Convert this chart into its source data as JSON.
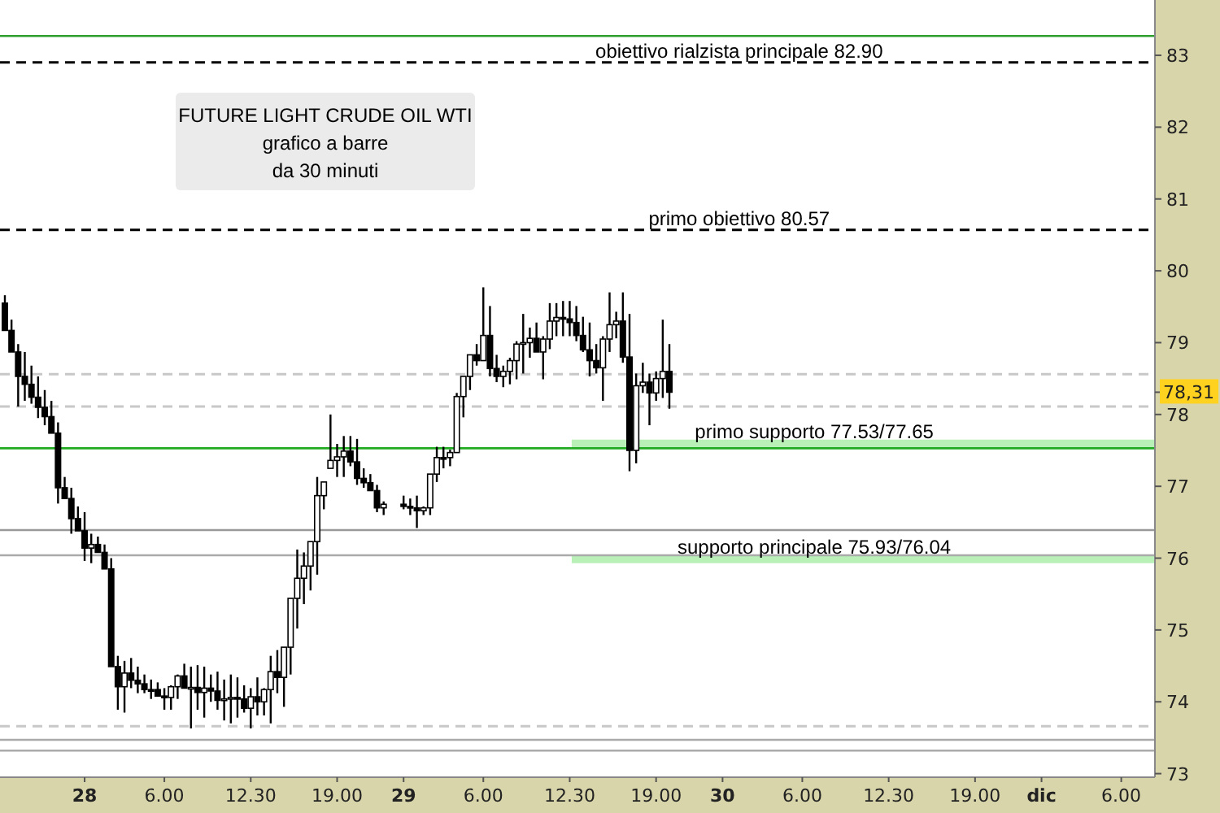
{
  "chart_data": {
    "type": "candlestick",
    "title": "FUTURE LIGHT CRUDE OIL WTI",
    "subtitle": "grafico a barre\nda 30 minuti",
    "color": "#000000",
    "x": [
      "--11-27T18:00",
      "--11-27T18:30",
      "--11-27T19:00",
      "--11-27T19:30",
      "--11-27T20:00",
      "--11-27T20:30",
      "--11-27T21:00",
      "--11-27T21:30",
      "--11-27T22:00",
      "--11-27T22:30",
      "--11-27T23:00",
      "--11-27T23:30",
      "--11-28T00:00",
      "--11-28T00:30",
      "--11-28T01:00",
      "--11-28T01:30",
      "--11-28T02:00",
      "--11-28T02:30",
      "--11-28T03:00",
      "--11-28T03:30",
      "--11-28T04:00",
      "--11-28T04:30",
      "--11-28T05:00",
      "--11-28T05:30",
      "--11-28T06:00",
      "--11-28T06:30",
      "--11-28T07:00",
      "--11-28T07:30",
      "--11-28T08:00",
      "--11-28T08:30",
      "--11-28T09:00",
      "--11-28T09:30",
      "--11-28T10:00",
      "--11-28T10:30",
      "--11-28T11:00",
      "--11-28T11:30",
      "--11-28T12:00",
      "--11-28T12:30",
      "--11-28T13:00",
      "--11-28T13:30",
      "--11-28T14:00",
      "--11-28T14:30",
      "--11-28T15:00",
      "--11-28T15:30",
      "--11-28T16:00",
      "--11-28T16:30",
      "--11-28T17:00",
      "--11-28T17:30",
      "--11-28T18:00",
      "--11-28T18:30",
      "--11-28T19:00",
      "--11-28T19:30",
      "--11-28T20:00",
      "--11-28T20:30",
      "--11-28T21:00",
      "--11-28T21:30",
      "--11-28T22:00",
      "--11-28T22:30",
      "--11-29T00:00",
      "--11-29T00:30",
      "--11-29T01:00",
      "--11-29T01:30",
      "--11-29T02:00",
      "--11-29T02:30",
      "--11-29T03:00",
      "--11-29T03:30",
      "--11-29T04:00",
      "--11-29T04:30",
      "--11-29T05:00",
      "--11-29T05:30",
      "--11-29T06:00",
      "--11-29T06:30",
      "--11-29T07:00",
      "--11-29T07:30",
      "--11-29T08:00",
      "--11-29T08:30",
      "--11-29T09:00",
      "--11-29T09:30",
      "--11-29T10:00",
      "--11-29T10:30",
      "--11-29T11:00",
      "--11-29T11:30",
      "--11-29T12:00",
      "--11-29T12:30",
      "--11-29T13:00",
      "--11-29T13:30",
      "--11-29T14:00",
      "--11-29T14:30",
      "--11-29T15:00",
      "--11-29T15:30",
      "--11-29T16:00",
      "--11-29T16:30",
      "--11-29T17:00",
      "--11-29T17:30",
      "--11-29T18:00",
      "--11-29T18:30",
      "--11-29T19:00",
      "--11-29T19:30",
      "--11-29T20:00"
    ],
    "ohlc": [
      [
        79.55,
        79.66,
        79.17,
        79.17
      ],
      [
        79.17,
        79.32,
        78.87,
        78.87
      ],
      [
        78.87,
        78.98,
        78.11,
        78.53
      ],
      [
        78.53,
        78.87,
        78.19,
        78.42
      ],
      [
        78.42,
        78.68,
        78.15,
        78.24
      ],
      [
        78.24,
        78.53,
        77.95,
        78.1
      ],
      [
        78.1,
        78.34,
        77.85,
        77.97
      ],
      [
        77.97,
        78.19,
        77.74,
        77.74
      ],
      [
        77.74,
        77.89,
        76.76,
        76.98
      ],
      [
        76.98,
        77.13,
        76.83,
        76.83
      ],
      [
        76.83,
        76.98,
        76.34,
        76.55
      ],
      [
        76.55,
        76.72,
        76.38,
        76.38
      ],
      [
        76.38,
        76.64,
        75.96,
        76.14
      ],
      [
        76.14,
        76.34,
        75.93,
        76.19
      ],
      [
        76.19,
        76.3,
        76.08,
        76.08
      ],
      [
        76.08,
        76.19,
        75.85,
        75.85
      ],
      [
        75.85,
        76.0,
        74.49,
        74.49
      ],
      [
        74.49,
        74.64,
        73.89,
        74.21
      ],
      [
        74.21,
        74.57,
        73.85,
        74.4
      ],
      [
        74.4,
        74.61,
        74.19,
        74.3
      ],
      [
        74.3,
        74.49,
        74.12,
        74.25
      ],
      [
        74.25,
        74.38,
        74.12,
        74.17
      ],
      [
        74.17,
        74.31,
        74.04,
        74.17
      ],
      [
        74.17,
        74.27,
        74.08,
        74.08
      ],
      [
        74.08,
        74.19,
        73.89,
        74.06
      ],
      [
        74.06,
        74.23,
        73.89,
        74.21
      ],
      [
        74.21,
        74.38,
        74.04,
        74.36
      ],
      [
        74.36,
        74.53,
        74.19,
        74.19
      ],
      [
        74.19,
        74.49,
        73.63,
        74.2
      ],
      [
        74.2,
        74.51,
        73.89,
        74.13
      ],
      [
        74.13,
        74.49,
        73.78,
        74.19
      ],
      [
        74.19,
        74.38,
        74.0,
        74.15
      ],
      [
        74.15,
        74.42,
        73.89,
        74.02
      ],
      [
        74.02,
        74.31,
        73.74,
        74.04
      ],
      [
        74.04,
        74.38,
        73.7,
        74.06
      ],
      [
        74.06,
        74.34,
        73.78,
        74.04
      ],
      [
        74.04,
        74.23,
        73.85,
        73.91
      ],
      [
        73.91,
        74.19,
        73.63,
        74.07
      ],
      [
        74.07,
        74.34,
        73.81,
        74.0
      ],
      [
        74.0,
        74.19,
        73.81,
        74.17
      ],
      [
        74.17,
        74.64,
        73.7,
        74.42
      ],
      [
        74.42,
        74.72,
        74.12,
        74.34
      ],
      [
        74.34,
        74.76,
        73.93,
        74.76
      ],
      [
        74.76,
        75.44,
        74.38,
        75.44
      ],
      [
        75.44,
        76.12,
        75.02,
        75.72
      ],
      [
        75.72,
        76.08,
        75.36,
        75.89
      ],
      [
        75.89,
        76.23,
        75.55,
        76.23
      ],
      [
        76.23,
        77.13,
        75.77,
        76.87
      ],
      [
        76.87,
        77.06,
        76.68,
        77.06
      ],
      [
        77.25,
        78.0,
        77.25,
        77.36
      ],
      [
        77.36,
        77.59,
        77.13,
        77.41
      ],
      [
        77.41,
        77.7,
        77.13,
        77.49
      ],
      [
        77.49,
        77.7,
        77.28,
        77.34
      ],
      [
        77.34,
        77.66,
        77.02,
        77.11
      ],
      [
        77.11,
        77.25,
        76.98,
        77.05
      ],
      [
        77.05,
        77.17,
        76.94,
        76.94
      ],
      [
        76.94,
        77.02,
        76.64,
        76.7
      ],
      [
        76.7,
        76.79,
        76.6,
        76.75
      ],
      [
        76.75,
        76.87,
        76.68,
        76.72
      ],
      [
        76.72,
        76.83,
        76.6,
        76.7
      ],
      [
        76.7,
        76.87,
        76.42,
        76.66
      ],
      [
        76.66,
        76.72,
        76.6,
        76.7
      ],
      [
        76.7,
        77.17,
        76.6,
        77.17
      ],
      [
        77.17,
        77.55,
        77.06,
        77.4
      ],
      [
        77.4,
        77.55,
        77.25,
        77.4
      ],
      [
        77.4,
        77.51,
        77.28,
        77.47
      ],
      [
        77.47,
        78.3,
        77.47,
        78.25
      ],
      [
        78.25,
        78.53,
        77.96,
        78.53
      ],
      [
        78.53,
        78.83,
        78.34,
        78.83
      ],
      [
        78.83,
        78.98,
        78.68,
        78.75
      ],
      [
        78.75,
        79.77,
        78.75,
        79.1
      ],
      [
        79.1,
        79.51,
        78.53,
        78.64
      ],
      [
        78.64,
        78.83,
        78.45,
        78.53
      ],
      [
        78.53,
        78.68,
        78.38,
        78.6
      ],
      [
        78.6,
        78.79,
        78.42,
        78.75
      ],
      [
        78.75,
        79.02,
        78.49,
        78.98
      ],
      [
        78.98,
        79.4,
        78.57,
        79.0
      ],
      [
        79.0,
        79.21,
        78.79,
        79.06
      ],
      [
        79.06,
        79.28,
        78.87,
        78.87
      ],
      [
        78.87,
        79.09,
        78.49,
        79.05
      ],
      [
        79.05,
        79.55,
        78.91,
        79.3
      ],
      [
        79.3,
        79.55,
        79.09,
        79.35
      ],
      [
        79.35,
        79.58,
        79.09,
        79.33
      ],
      [
        79.33,
        79.58,
        79.09,
        79.28
      ],
      [
        79.28,
        79.51,
        79.02,
        79.1
      ],
      [
        79.1,
        79.36,
        78.87,
        78.9
      ],
      [
        78.9,
        79.28,
        78.53,
        78.75
      ],
      [
        78.75,
        78.98,
        78.57,
        78.65
      ],
      [
        78.65,
        79.09,
        78.19,
        79.05
      ],
      [
        79.05,
        79.7,
        78.87,
        79.25
      ],
      [
        79.25,
        79.43,
        79.06,
        79.3
      ],
      [
        79.3,
        79.7,
        78.72,
        78.8
      ],
      [
        78.8,
        79.4,
        77.21,
        77.5
      ],
      [
        77.5,
        78.57,
        77.32,
        78.4
      ],
      [
        78.4,
        78.72,
        78.3,
        78.45
      ],
      [
        78.45,
        78.57,
        77.85,
        78.3
      ],
      [
        78.3,
        78.6,
        78.19,
        78.5
      ],
      [
        78.5,
        79.32,
        78.23,
        78.6
      ],
      [
        78.6,
        78.98,
        78.08,
        78.31
      ]
    ],
    "xlim": [
      "--11-27T17:38",
      "--12-01T08:32"
    ],
    "xticks": [
      {
        "value": "--11-28",
        "label": "28"
      },
      {
        "value": "--11-28T06:00",
        "label": "6.00"
      },
      {
        "value": "--11-28T12:30",
        "label": "12.30"
      },
      {
        "value": "--11-28T19:00",
        "label": "19.00"
      },
      {
        "value": "--11-29",
        "label": "29"
      },
      {
        "value": "--11-29T06:00",
        "label": "6.00"
      },
      {
        "value": "--11-29T12:30",
        "label": "12.30"
      },
      {
        "value": "--11-29T19:00",
        "label": "19.00"
      },
      {
        "value": "--11-30",
        "label": "30"
      },
      {
        "value": "--11-30T06:00",
        "label": "6.00"
      },
      {
        "value": "--11-30T12:30",
        "label": "12.30"
      },
      {
        "value": "--11-30T19:00",
        "label": "19.00"
      },
      {
        "value": "--12-01",
        "label": "dic"
      },
      {
        "value": "--12-01T06:00",
        "label": "6.00"
      }
    ],
    "ylim": [
      72.95,
      83.77
    ],
    "yticks": [
      73,
      74,
      75,
      76,
      77,
      78,
      {
        "value": 78.31,
        "label": "78,31"
      },
      79,
      80,
      81,
      82,
      83
    ],
    "ref_lines": [
      {
        "axis": "y",
        "value": 83.27,
        "color": "#2e9e2e",
        "line_style": "solid"
      },
      {
        "axis": "y",
        "value": 82.9,
        "label": "obiettivo rialzista principale 82.90",
        "color": "#000000",
        "line_style": "dashed"
      },
      {
        "axis": "y",
        "value": 80.57,
        "label": "primo obiettivo 80.57",
        "color": "#000000",
        "line_style": "dashed"
      },
      {
        "axis": "y",
        "value": 78.56,
        "color": "#c8c8c8",
        "line_style": "dashed"
      },
      {
        "axis": "y",
        "value": 78.11,
        "color": "#c8c8c8",
        "line_style": "dashed"
      },
      {
        "axis": "y",
        "value": 77.53,
        "color": "#22aa22",
        "line_style": "solid"
      },
      {
        "axis": "y",
        "value": 76.39,
        "color": "#999999",
        "line_style": "solid"
      },
      {
        "axis": "y",
        "value": 76.04,
        "color": "#aaaaaa",
        "line_style": "solid"
      },
      {
        "axis": "y",
        "value": 73.66,
        "color": "#c8c8c8",
        "line_style": "dashed"
      },
      {
        "axis": "y",
        "value": 73.47,
        "color": "#aaaaaa",
        "line_style": "solid"
      },
      {
        "axis": "y",
        "value": 73.32,
        "color": "#aaaaaa",
        "line_style": "solid"
      }
    ],
    "bands": [
      {
        "axis": "y",
        "from": 77.53,
        "to": 77.65,
        "label": "primo supporto 77.53/77.65",
        "color": "#b8f0b8"
      },
      {
        "axis": "y",
        "from": 75.93,
        "to": 76.04,
        "label": "supporto principale 75.93/76.04",
        "color": "#b8f0b8"
      }
    ]
  }
}
